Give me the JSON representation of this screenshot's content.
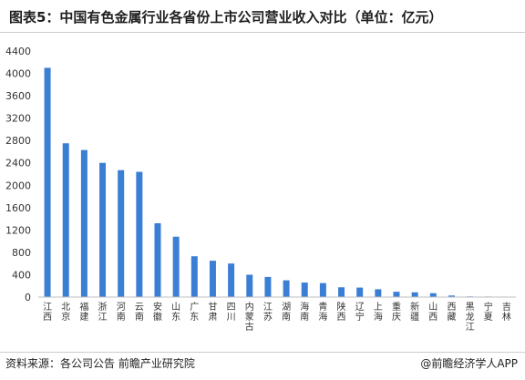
{
  "title": "图表5：中国有色金属行业各省份上市公司营业收入对比（单位：亿元）",
  "source": "资料来源：各公司公告 前瞻产业研究院",
  "brand": "@前瞻经济学人APP",
  "colors": {
    "bar": "#3b7fd5",
    "axis": "#bfbfbf"
  },
  "chart_data": {
    "type": "bar",
    "title": "图表5：中国有色金属行业各省份上市公司营业收入对比（单位：亿元）",
    "xlabel": "",
    "ylabel": "",
    "ylim": [
      0,
      4400
    ],
    "yticks": [
      0,
      400,
      800,
      1200,
      1600,
      2000,
      2400,
      2800,
      3200,
      3600,
      4000,
      4400
    ],
    "grid": false,
    "categories": [
      "江西",
      "北京",
      "福建",
      "浙江",
      "河南",
      "云南",
      "安徽",
      "山东",
      "广东",
      "甘肃",
      "四川",
      "内蒙古",
      "江苏",
      "湖南",
      "海南",
      "青海",
      "陕西",
      "辽宁",
      "上海",
      "重庆",
      "新疆",
      "山西",
      "西藏",
      "黑龙江",
      "宁夏",
      "吉林"
    ],
    "values": [
      4100,
      2750,
      2630,
      2400,
      2270,
      2240,
      1320,
      1080,
      730,
      650,
      600,
      400,
      360,
      300,
      260,
      250,
      175,
      170,
      140,
      95,
      85,
      70,
      28,
      12,
      10,
      8
    ]
  }
}
